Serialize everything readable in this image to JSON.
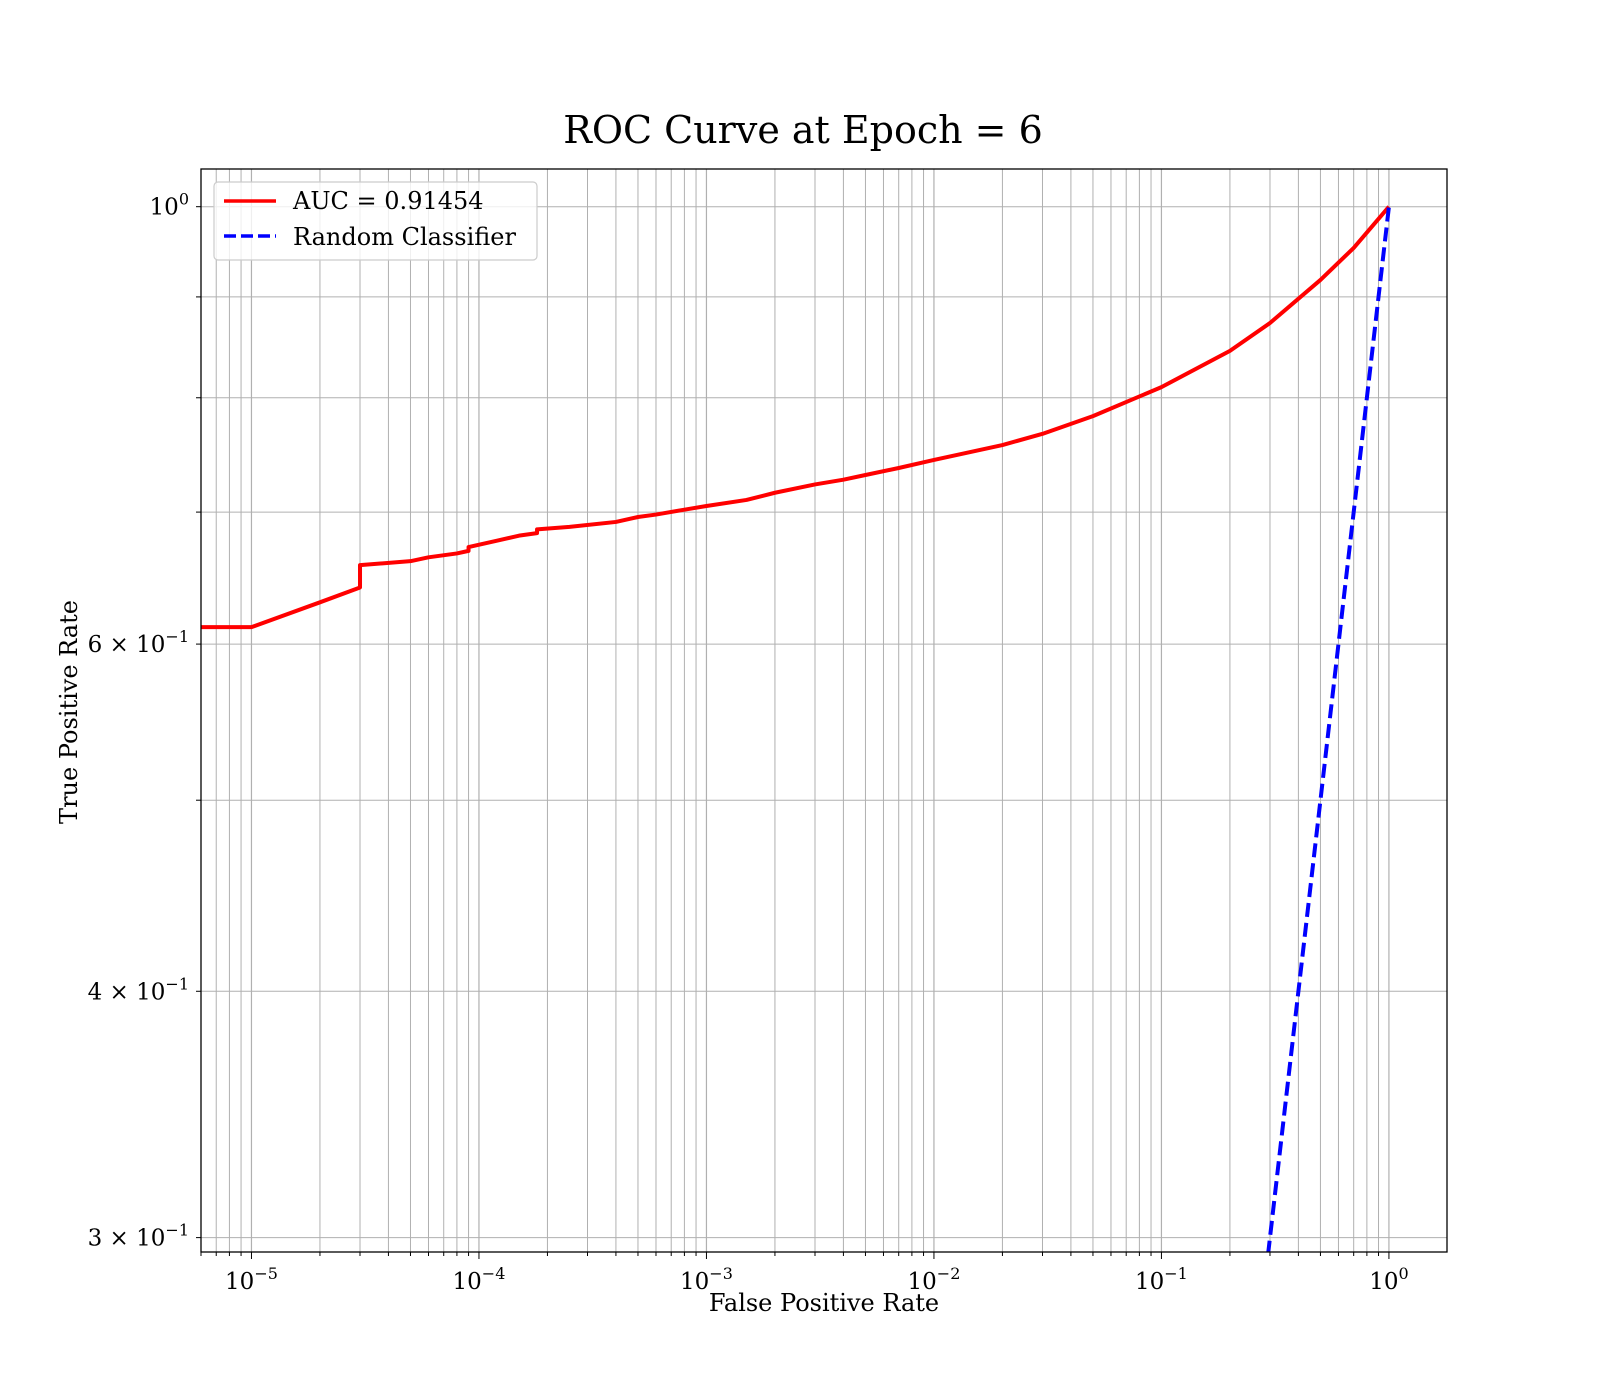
{
  "chart_data": {
    "type": "line",
    "title": "ROC Curve at Epoch = 6",
    "xlabel": "False Positive Rate",
    "ylabel": "True Positive Rate",
    "xscale": "log",
    "yscale": "log",
    "xlim": [
      6e-06,
      1.8
    ],
    "ylim": [
      0.295,
      1.045
    ],
    "grid": true,
    "legend_position": "top-left",
    "x_ticks": [
      {
        "value": 1e-05,
        "base": "10",
        "exp": "−5"
      },
      {
        "value": 0.0001,
        "base": "10",
        "exp": "−4"
      },
      {
        "value": 0.001,
        "base": "10",
        "exp": "−3"
      },
      {
        "value": 0.01,
        "base": "10",
        "exp": "−2"
      },
      {
        "value": 0.1,
        "base": "10",
        "exp": "−1"
      },
      {
        "value": 1,
        "base": "10",
        "exp": "0"
      }
    ],
    "y_ticks": [
      {
        "value": 1.0,
        "base": "10",
        "exp": "0"
      },
      {
        "value": 0.6,
        "base": "6 × 10",
        "exp": "−1"
      },
      {
        "value": 0.4,
        "base": "4 × 10",
        "exp": "−1"
      },
      {
        "value": 0.3,
        "base": "3 × 10",
        "exp": "−1"
      }
    ],
    "series": [
      {
        "name": "AUC = 0.91454",
        "color": "#ff0000",
        "style": "solid",
        "points": [
          [
            6e-06,
            0.612
          ],
          [
            1e-05,
            0.612
          ],
          [
            2e-05,
            0.63
          ],
          [
            3e-05,
            0.641
          ],
          [
            3e-05,
            0.658
          ],
          [
            5e-05,
            0.661
          ],
          [
            6e-05,
            0.664
          ],
          [
            8e-05,
            0.667
          ],
          [
            9e-05,
            0.669
          ],
          [
            9e-05,
            0.672
          ],
          [
            0.00012,
            0.677
          ],
          [
            0.00015,
            0.681
          ],
          [
            0.00018,
            0.683
          ],
          [
            0.00018,
            0.686
          ],
          [
            0.00025,
            0.688
          ],
          [
            0.0004,
            0.692
          ],
          [
            0.0005,
            0.696
          ],
          [
            0.0006,
            0.698
          ],
          [
            0.0008,
            0.702
          ],
          [
            0.001,
            0.705
          ],
          [
            0.0015,
            0.71
          ],
          [
            0.002,
            0.716
          ],
          [
            0.003,
            0.723
          ],
          [
            0.004,
            0.727
          ],
          [
            0.005,
            0.731
          ],
          [
            0.007,
            0.737
          ],
          [
            0.01,
            0.744
          ],
          [
            0.02,
            0.757
          ],
          [
            0.03,
            0.767
          ],
          [
            0.05,
            0.783
          ],
          [
            0.1,
            0.81
          ],
          [
            0.2,
            0.845
          ],
          [
            0.3,
            0.873
          ],
          [
            0.5,
            0.918
          ],
          [
            0.7,
            0.953
          ],
          [
            1.0,
            1.0
          ]
        ]
      },
      {
        "name": "Random Classifier",
        "color": "#0000ff",
        "style": "dashed",
        "points": [
          [
            0.25,
            0.25
          ],
          [
            0.3,
            0.3
          ],
          [
            0.5,
            0.5
          ],
          [
            0.7,
            0.7
          ],
          [
            1.0,
            1.0
          ]
        ]
      }
    ]
  }
}
